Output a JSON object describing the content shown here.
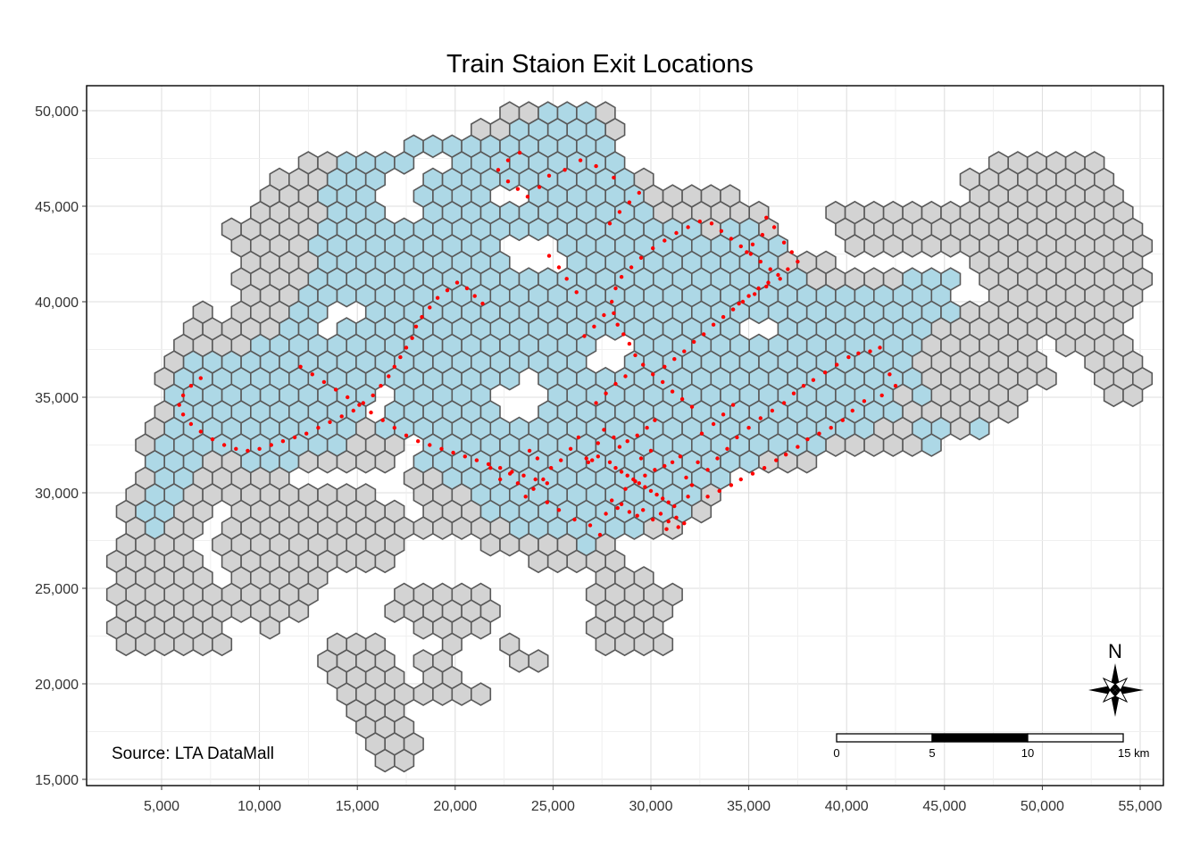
{
  "title": "Train Staion Exit Locations",
  "credit": "Source: LTA DataMall",
  "north_label": "N",
  "scale_bar": {
    "labels": [
      "0",
      "5",
      "10",
      "15 km"
    ],
    "length_km": 15
  },
  "colors": {
    "land_hex": "#d3d3d3",
    "served_hex": "#add8e6",
    "hex_border": "#595959",
    "exit_point": "#ff0000",
    "grid": "#dcdcdc"
  },
  "chart_data": {
    "type": "scatter",
    "title": "Train Staion Exit Locations",
    "xlabel": "",
    "ylabel": "",
    "xlim": [
      2300,
      58800
    ],
    "ylim": [
      14800,
      51600
    ],
    "x_ticks": [
      5000,
      10000,
      15000,
      20000,
      25000,
      30000,
      35000,
      40000,
      45000,
      50000,
      55000
    ],
    "x_tick_labels": [
      "5,000",
      "10,000",
      "15,000",
      "20,000",
      "25,000",
      "30,000",
      "35,000",
      "40,000",
      "45,000",
      "50,000",
      "55,000"
    ],
    "y_ticks": [
      15000,
      20000,
      25000,
      30000,
      35000,
      40000,
      45000,
      50000
    ],
    "y_tick_labels": [
      "15,000",
      "20,000",
      "25,000",
      "30,000",
      "35,000",
      "40,000",
      "45,000",
      "50,000"
    ],
    "grid": true,
    "layers": [
      {
        "name": "hexagon grid",
        "kind": "hexbin",
        "fill_empty": "#d3d3d3",
        "fill_with_exit": "#add8e6"
      },
      {
        "name": "train station exits",
        "kind": "points",
        "color": "#ff0000"
      }
    ],
    "exit_points": [
      [
        26700,
        31800
      ],
      [
        26800,
        31600
      ],
      [
        27000,
        31700
      ],
      [
        27300,
        31900
      ],
      [
        27900,
        31600
      ],
      [
        28200,
        31300
      ],
      [
        28500,
        31100
      ],
      [
        28800,
        30900
      ],
      [
        29100,
        30700
      ],
      [
        29400,
        30500
      ],
      [
        29700,
        30300
      ],
      [
        30000,
        30100
      ],
      [
        30300,
        29900
      ],
      [
        30600,
        29700
      ],
      [
        30900,
        29500
      ],
      [
        31200,
        29300
      ],
      [
        28300,
        29200
      ],
      [
        28500,
        29400
      ],
      [
        28900,
        29000
      ],
      [
        29300,
        28800
      ],
      [
        29600,
        29100
      ],
      [
        30100,
        28600
      ],
      [
        30500,
        28900
      ],
      [
        30900,
        28500
      ],
      [
        31300,
        28700
      ],
      [
        31700,
        28400
      ],
      [
        31400,
        28200
      ],
      [
        30800,
        28100
      ],
      [
        28700,
        30200
      ],
      [
        29200,
        30600
      ],
      [
        29700,
        30900
      ],
      [
        30200,
        31200
      ],
      [
        30700,
        31400
      ],
      [
        31100,
        31600
      ],
      [
        31500,
        31900
      ],
      [
        31800,
        30800
      ],
      [
        32100,
        30400
      ],
      [
        31900,
        29800
      ],
      [
        29500,
        31800
      ],
      [
        30000,
        32200
      ],
      [
        28400,
        32400
      ],
      [
        28100,
        32900
      ],
      [
        27600,
        33300
      ],
      [
        27300,
        32600
      ],
      [
        26300,
        32900
      ],
      [
        25900,
        32300
      ],
      [
        25400,
        31700
      ],
      [
        24900,
        31300
      ],
      [
        24500,
        30700
      ],
      [
        24000,
        30200
      ],
      [
        23600,
        29800
      ],
      [
        23200,
        30500
      ],
      [
        22800,
        31000
      ],
      [
        22300,
        30700
      ],
      [
        21800,
        31300
      ],
      [
        23800,
        32200
      ],
      [
        24200,
        31800
      ],
      [
        24700,
        29500
      ],
      [
        25300,
        29100
      ],
      [
        26100,
        28600
      ],
      [
        26900,
        28300
      ],
      [
        27400,
        27800
      ],
      [
        27700,
        28900
      ],
      [
        28000,
        29600
      ],
      [
        32400,
        31600
      ],
      [
        32900,
        31200
      ],
      [
        33400,
        31800
      ],
      [
        33900,
        32300
      ],
      [
        34400,
        32900
      ],
      [
        35000,
        33400
      ],
      [
        35600,
        33900
      ],
      [
        36200,
        34300
      ],
      [
        36800,
        34700
      ],
      [
        37300,
        35200
      ],
      [
        37800,
        35600
      ],
      [
        38300,
        35900
      ],
      [
        38900,
        36300
      ],
      [
        39500,
        36700
      ],
      [
        40100,
        37100
      ],
      [
        40600,
        37300
      ],
      [
        41200,
        37400
      ],
      [
        41700,
        37600
      ],
      [
        42200,
        36200
      ],
      [
        42500,
        35600
      ],
      [
        41800,
        35100
      ],
      [
        40900,
        34800
      ],
      [
        40300,
        34300
      ],
      [
        39800,
        33800
      ],
      [
        39200,
        33400
      ],
      [
        38600,
        33100
      ],
      [
        38000,
        32800
      ],
      [
        37500,
        32400
      ],
      [
        36900,
        32000
      ],
      [
        36400,
        31700
      ],
      [
        35800,
        31300
      ],
      [
        35200,
        31000
      ],
      [
        34600,
        30700
      ],
      [
        34100,
        30400
      ],
      [
        33500,
        30100
      ],
      [
        32900,
        29800
      ],
      [
        32600,
        33100
      ],
      [
        33200,
        33600
      ],
      [
        33700,
        34100
      ],
      [
        34200,
        34600
      ],
      [
        32100,
        34500
      ],
      [
        31600,
        34900
      ],
      [
        31100,
        35300
      ],
      [
        30600,
        35800
      ],
      [
        30100,
        36200
      ],
      [
        29600,
        36700
      ],
      [
        29200,
        37200
      ],
      [
        28900,
        37800
      ],
      [
        28600,
        38300
      ],
      [
        28300,
        38800
      ],
      [
        28100,
        39400
      ],
      [
        28000,
        40000
      ],
      [
        28200,
        40700
      ],
      [
        28500,
        41300
      ],
      [
        29000,
        41800
      ],
      [
        29500,
        42300
      ],
      [
        30100,
        42800
      ],
      [
        30700,
        43200
      ],
      [
        31300,
        43600
      ],
      [
        31900,
        43900
      ],
      [
        32500,
        44200
      ],
      [
        33100,
        44100
      ],
      [
        33600,
        43700
      ],
      [
        34100,
        43300
      ],
      [
        34600,
        42900
      ],
      [
        35100,
        42500
      ],
      [
        35600,
        42100
      ],
      [
        36100,
        41700
      ],
      [
        36600,
        41200
      ],
      [
        35900,
        40800
      ],
      [
        35300,
        40400
      ],
      [
        34700,
        40000
      ],
      [
        34200,
        39600
      ],
      [
        33700,
        39200
      ],
      [
        33200,
        38800
      ],
      [
        32700,
        38300
      ],
      [
        32200,
        37900
      ],
      [
        31700,
        37400
      ],
      [
        31200,
        37000
      ],
      [
        30700,
        36600
      ],
      [
        30200,
        33800
      ],
      [
        29800,
        33400
      ],
      [
        29300,
        33000
      ],
      [
        28800,
        32700
      ],
      [
        27200,
        34700
      ],
      [
        27700,
        35200
      ],
      [
        28200,
        35700
      ],
      [
        28700,
        36100
      ],
      [
        26600,
        38200
      ],
      [
        27100,
        38700
      ],
      [
        27600,
        39300
      ],
      [
        26200,
        40500
      ],
      [
        25700,
        41200
      ],
      [
        25300,
        41800
      ],
      [
        24800,
        42400
      ],
      [
        27900,
        44100
      ],
      [
        28400,
        44700
      ],
      [
        28900,
        45200
      ],
      [
        29400,
        45700
      ],
      [
        28100,
        46500
      ],
      [
        27200,
        47100
      ],
      [
        26400,
        47400
      ],
      [
        25600,
        46900
      ],
      [
        24800,
        46600
      ],
      [
        24300,
        46000
      ],
      [
        23700,
        45500
      ],
      [
        23200,
        45900
      ],
      [
        22700,
        46300
      ],
      [
        22200,
        46900
      ],
      [
        22700,
        47400
      ],
      [
        23300,
        47800
      ],
      [
        35900,
        44400
      ],
      [
        36300,
        43900
      ],
      [
        35700,
        43500
      ],
      [
        35200,
        43000
      ],
      [
        34900,
        42600
      ],
      [
        36800,
        43100
      ],
      [
        37200,
        42600
      ],
      [
        37500,
        42100
      ],
      [
        37000,
        41700
      ],
      [
        36500,
        41400
      ],
      [
        36000,
        41000
      ],
      [
        35500,
        40700
      ],
      [
        35000,
        40300
      ],
      [
        34500,
        39900
      ],
      [
        20100,
        41000
      ],
      [
        20600,
        40700
      ],
      [
        21000,
        40300
      ],
      [
        21400,
        39900
      ],
      [
        19600,
        40600
      ],
      [
        19100,
        40200
      ],
      [
        18700,
        39700
      ],
      [
        18300,
        39200
      ],
      [
        18000,
        38700
      ],
      [
        17800,
        38100
      ],
      [
        17500,
        37600
      ],
      [
        17200,
        37100
      ],
      [
        16900,
        36600
      ],
      [
        16600,
        36100
      ],
      [
        16200,
        35600
      ],
      [
        15800,
        35100
      ],
      [
        15300,
        34700
      ],
      [
        14800,
        34300
      ],
      [
        14200,
        34000
      ],
      [
        13600,
        33700
      ],
      [
        13000,
        33400
      ],
      [
        12400,
        33100
      ],
      [
        11800,
        32900
      ],
      [
        11200,
        32700
      ],
      [
        10600,
        32500
      ],
      [
        10000,
        32300
      ],
      [
        9400,
        32200
      ],
      [
        8800,
        32300
      ],
      [
        8200,
        32500
      ],
      [
        7600,
        32800
      ],
      [
        7000,
        33200
      ],
      [
        6500,
        33600
      ],
      [
        6100,
        34100
      ],
      [
        5900,
        34600
      ],
      [
        6100,
        35100
      ],
      [
        6500,
        35600
      ],
      [
        7000,
        36000
      ],
      [
        12100,
        36600
      ],
      [
        12700,
        36200
      ],
      [
        13300,
        35800
      ],
      [
        13900,
        35400
      ],
      [
        14500,
        35000
      ],
      [
        15100,
        34600
      ],
      [
        15700,
        34200
      ],
      [
        16300,
        33800
      ],
      [
        16900,
        33400
      ],
      [
        17500,
        33000
      ],
      [
        18100,
        32700
      ],
      [
        18700,
        32500
      ],
      [
        19300,
        32300
      ],
      [
        19900,
        32100
      ],
      [
        20500,
        31900
      ],
      [
        21100,
        31700
      ],
      [
        21700,
        31500
      ],
      [
        22300,
        31300
      ],
      [
        22900,
        31100
      ],
      [
        23500,
        30900
      ],
      [
        24100,
        30700
      ],
      [
        24700,
        30500
      ]
    ]
  }
}
